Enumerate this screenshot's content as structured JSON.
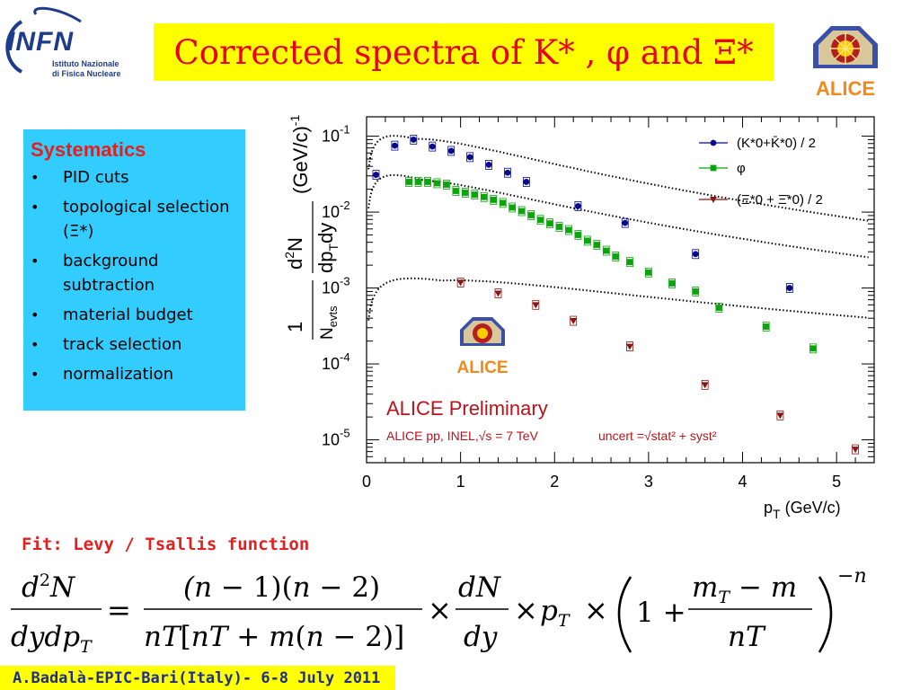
{
  "header": {
    "infn": {
      "name": "INFN",
      "line1": "Istituto Nazionale",
      "line2": "di Fisica Nucleare"
    },
    "title": "Corrected spectra of K* , φ and Ξ*",
    "alice_logo_text": "ALICE"
  },
  "systematics": {
    "title": "Systematics",
    "items": [
      "PID cuts",
      "topological selection (Ξ*)",
      "background subtraction",
      "material budget",
      "track selection",
      "normalization"
    ]
  },
  "fit_label": "Fit: Levy / Tsallis function",
  "footer": "A.Badalà-EPIC-Bari(Italy)- 6-8 July 2011",
  "colors": {
    "title_bg": "#ffff00",
    "title_text": "#e8001c",
    "panel_bg": "#33ccff",
    "kstar": "#0a0a8c",
    "phi": "#0ba50b",
    "xistar": "#8c1414"
  },
  "chart_data": {
    "type": "scatter",
    "x_log": false,
    "y_log": true,
    "xlim": [
      0,
      5.4
    ],
    "ylim": [
      5e-06,
      0.18
    ],
    "xticks": [
      "0",
      "1",
      "2",
      "3",
      "4",
      "5"
    ],
    "ylabel_text": "1/N_evts d²N/(dp_T dy) (GeV/c)⁻¹",
    "xlabel": "p",
    "xlabel_sub": "T",
    "xlabel_unit": " (GeV/c)",
    "grid": false,
    "legend_position": "top-right",
    "annotation_title": "ALICE Preliminary",
    "annotation_sub": "ALICE pp, INEL,√s = 7 TeV",
    "annotation_uncert": "uncert =√stat² + syst²",
    "series": [
      {
        "name": "(K*0+K̄*0) / 2",
        "marker": "circle",
        "x": [
          0.1,
          0.3,
          0.5,
          0.7,
          0.9,
          1.1,
          1.3,
          1.5,
          1.7,
          2.25,
          2.75,
          3.5,
          4.5
        ],
        "y": [
          0.031,
          0.075,
          0.09,
          0.073,
          0.064,
          0.053,
          0.042,
          0.033,
          0.025,
          0.012,
          0.0072,
          0.0028,
          0.001
        ]
      },
      {
        "name": "φ",
        "marker": "square",
        "x": [
          0.45,
          0.55,
          0.65,
          0.75,
          0.85,
          0.95,
          1.05,
          1.15,
          1.25,
          1.35,
          1.45,
          1.55,
          1.65,
          1.75,
          1.85,
          1.95,
          2.05,
          2.15,
          2.25,
          2.35,
          2.45,
          2.55,
          2.65,
          2.8,
          3.0,
          3.25,
          3.5,
          3.75,
          4.25,
          4.75
        ],
        "y": [
          0.025,
          0.025,
          0.025,
          0.024,
          0.023,
          0.019,
          0.018,
          0.017,
          0.0158,
          0.0145,
          0.0132,
          0.0115,
          0.0103,
          0.0091,
          0.0079,
          0.0071,
          0.0064,
          0.0058,
          0.005,
          0.0042,
          0.0037,
          0.0031,
          0.0026,
          0.0022,
          0.0016,
          0.00115,
          0.0009,
          0.00055,
          0.00031,
          0.00016
        ]
      },
      {
        "name": "(Ξ*0 + Ξ̄*0) / 2",
        "marker": "triangle",
        "x": [
          1.0,
          1.4,
          1.8,
          2.2,
          2.8,
          3.6,
          4.4,
          5.2
        ],
        "y": [
          0.00118,
          0.00085,
          0.0006,
          0.00037,
          0.00017,
          5.3e-05,
          2.1e-05,
          7.5e-06
        ]
      }
    ],
    "fits": [
      {
        "series": "(K*0+K̄*0) / 2",
        "A": 0.092,
        "x0": 0.52,
        "k1": 4.3,
        "k2": 0.55
      },
      {
        "series": "φ",
        "A": 0.026,
        "x0": 0.62,
        "k1": 4.0,
        "k2": 0.6
      },
      {
        "series": "(Ξ*0 + Ξ̄*0) / 2",
        "A": 0.00125,
        "x0": 0.8,
        "k1": 3.2,
        "k2": 0.48
      }
    ]
  }
}
